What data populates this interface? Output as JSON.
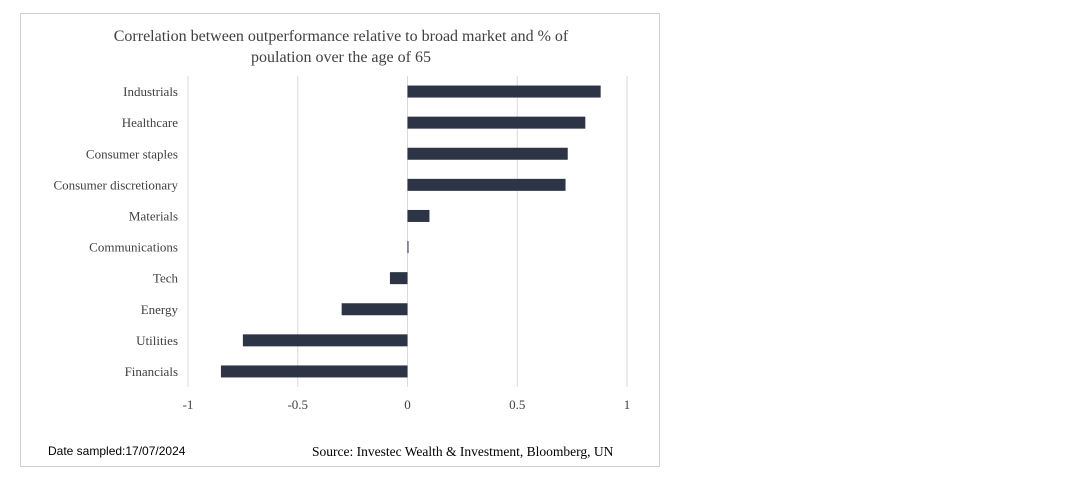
{
  "chart_data": {
    "type": "bar",
    "orientation": "horizontal",
    "title_lines": [
      "Correlation between outperformance relative to broad market and % of",
      "poulation over the age of 65"
    ],
    "categories": [
      "Industrials",
      "Healthcare",
      "Consumer staples",
      "Consumer discretionary",
      "Materials",
      "Communications",
      "Tech",
      "Energy",
      "Utilities",
      "Financials"
    ],
    "values": [
      0.88,
      0.81,
      0.73,
      0.72,
      0.1,
      0.0,
      -0.08,
      -0.3,
      -0.75,
      -0.85
    ],
    "xlim": [
      -1,
      1
    ],
    "x_ticks": [
      -1,
      -0.5,
      0,
      0.5,
      1
    ],
    "x_tick_labels": [
      "-1",
      "-0.5",
      "0",
      "0.5",
      "1"
    ],
    "grid": "vertical",
    "bar_color": "#2d3446",
    "grid_color": "#d9d9d9"
  },
  "footer": {
    "date_sampled": "Date sampled:17/07/2024",
    "source": "Source: Investec Wealth & Investment, Bloomberg, UN"
  }
}
